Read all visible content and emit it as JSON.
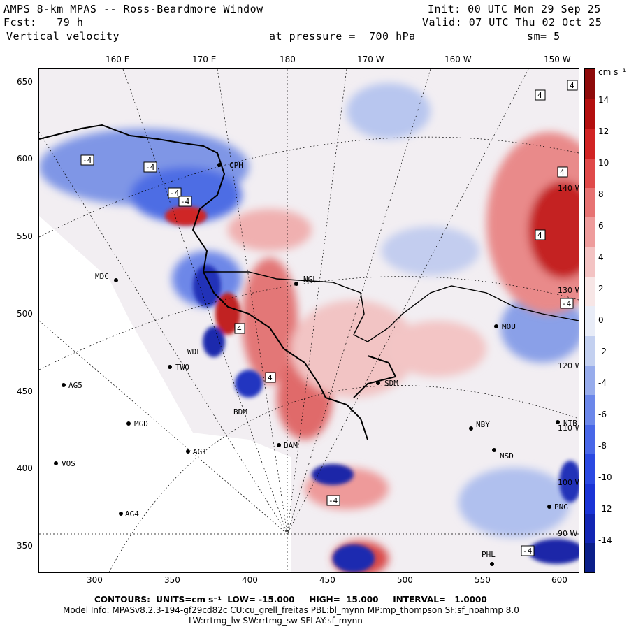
{
  "header": {
    "line1_left": "AMPS 8-km MPAS -- Ross-Beardmore Window",
    "line1_right": "Init: 00 UTC Mon 29 Sep 25",
    "line2_left": "Fcst:   79 h",
    "line2_right": "Valid: 07 UTC Thu 02 Oct 25",
    "line3_left": "Vertical velocity",
    "line3_mid": "at pressure =  700 hPa",
    "line3_right": "sm= 5"
  },
  "top_axis": [
    "160 E",
    "170 E",
    "180",
    "170 W",
    "160 W",
    "150 W"
  ],
  "left_axis": [
    "650",
    "600",
    "550",
    "500",
    "450",
    "400",
    "350"
  ],
  "bottom_axis": [
    "300",
    "350",
    "400",
    "450",
    "500",
    "550",
    "600"
  ],
  "colorbar": {
    "units": "cm s⁻¹",
    "labels": [
      "14",
      "12",
      "10",
      "8",
      "6",
      "4",
      "2",
      "0",
      "-2",
      "-4",
      "-6",
      "-8",
      "-10",
      "-12",
      "-14"
    ],
    "colors": [
      "#0b1f8a",
      "#1226b4",
      "#1a34d6",
      "#2a49e2",
      "#4867e8",
      "#6b87ea",
      "#97acec",
      "#c3d0f0",
      "#e8ecf7",
      "#f7e6e6",
      "#f3c3c3",
      "#ee9c9c",
      "#e77373",
      "#e04a4a",
      "#d12424",
      "#b30f0f",
      "#8e0a0a"
    ]
  },
  "map": {
    "stations": [
      "CPH",
      "MDC",
      "NGL",
      "WDL",
      "TWO",
      "AG5",
      "SDM",
      "BDM",
      "MGD",
      "AG1",
      "DAM",
      "NBY",
      "NSD",
      "VOS",
      "AG4",
      "PNG",
      "PHL",
      "NTB",
      "MOU"
    ],
    "contour_labels": [
      "-4",
      "-4",
      "-4",
      "4",
      "4",
      "4",
      "4",
      "-4",
      "4",
      "-4",
      "-4",
      "4",
      "-4"
    ],
    "lon_labels_inside": [
      "140 W",
      "130 W",
      "120 W",
      "110 W",
      "100 W",
      "90 W"
    ]
  },
  "footer": {
    "contours": "CONTOURS:  UNITS=cm s⁻¹  LOW= -15.000     HIGH=  15.000     INTERVAL=   1.0000",
    "model": "Model Info: MPASv8.2.3-194-gf29cd82c CU:cu_grell_freitas PBL:bl_mynn MP:mp_thompson SF:sf_noahmp 8.0",
    "model2": "LW:rrtmg_lw SW:rrtmg_sw SFLAY:sf_mynn"
  }
}
